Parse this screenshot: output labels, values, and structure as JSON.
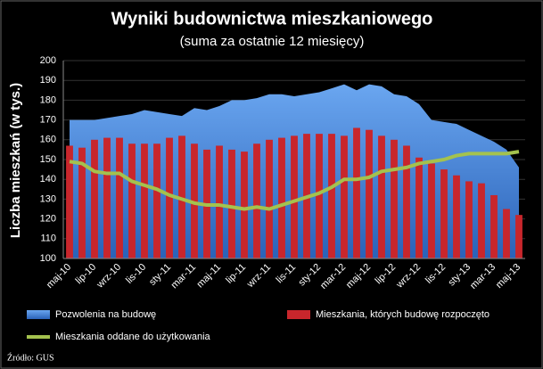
{
  "chart_data": {
    "type": "bar-area-line",
    "title": "Wyniki budownictwa mieszkaniowego",
    "subtitle": "(suma za ostatnie 12 miesięcy)",
    "y_label": "Liczba mieszkań (w tys.)",
    "source": "Źródło: GUS",
    "categories": [
      "maj-10",
      null,
      "lip-10",
      null,
      "wrz-10",
      null,
      "lis-10",
      null,
      "sty-11",
      null,
      "mar-11",
      null,
      "maj-11",
      null,
      "lip-11",
      null,
      "wrz-11",
      null,
      "lis-11",
      null,
      "sty-12",
      null,
      "mar-12",
      null,
      "maj-12",
      null,
      "lip-12",
      null,
      "wrz-12",
      null,
      "lis-12",
      null,
      "sty-13",
      null,
      "mar-13",
      null,
      "maj-13"
    ],
    "series": [
      {
        "name": "Pozwolenia na budowę",
        "kind": "area",
        "color": "#3f82dc",
        "values": [
          170,
          170,
          170,
          171,
          172,
          173,
          175,
          174,
          173,
          172,
          176,
          175,
          177,
          180,
          180,
          181,
          183,
          183,
          182,
          183,
          184,
          186,
          188,
          185,
          188,
          187,
          183,
          182,
          178,
          170,
          169,
          168,
          165,
          162,
          159,
          155,
          146
        ]
      },
      {
        "name": "Mieszkania, których budowę rozpoczęto",
        "kind": "bar",
        "color": "#c8262c",
        "values": [
          157,
          156,
          160,
          161,
          161,
          158,
          158,
          158,
          161,
          162,
          158,
          155,
          157,
          155,
          154,
          158,
          160,
          161,
          162,
          163,
          163,
          163,
          162,
          166,
          165,
          162,
          160,
          157,
          151,
          148,
          145,
          142,
          139,
          138,
          132,
          125,
          122
        ]
      },
      {
        "name": "Mieszkania oddane do użytkowania",
        "kind": "line",
        "color": "#a4c24e",
        "values": [
          149,
          148,
          144,
          143,
          143,
          139,
          137,
          135,
          132,
          130,
          128,
          127,
          127,
          126,
          125,
          126,
          125,
          127,
          129,
          131,
          133,
          136,
          140,
          140,
          141,
          144,
          145,
          146,
          148,
          149,
          150,
          152,
          153,
          153,
          153,
          153,
          154
        ]
      }
    ],
    "ylim": [
      100,
      200
    ],
    "yticks": [
      100,
      110,
      120,
      130,
      140,
      150,
      160,
      170,
      180,
      190,
      200
    ],
    "grid": true
  }
}
